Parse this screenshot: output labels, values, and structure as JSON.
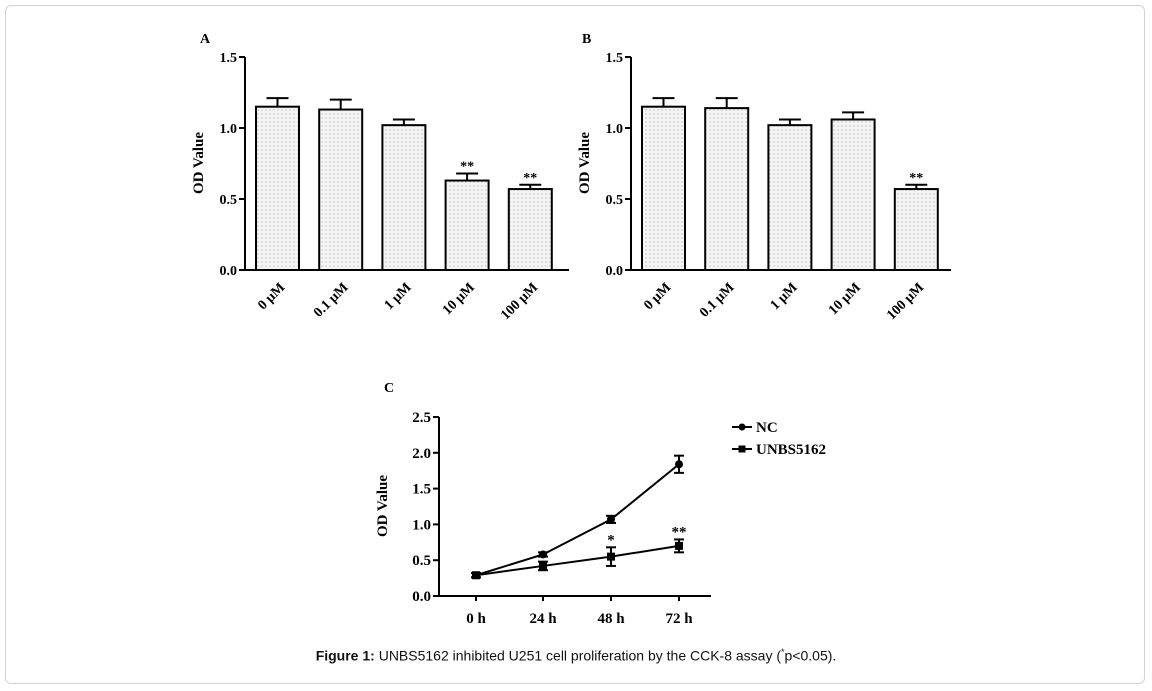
{
  "caption": {
    "label": "Figure 1:",
    "text_before": "UNBS5162 inhibited U251 cell proliferation by the CCK-8 assay (",
    "superscript": "*",
    "text_after": "p<0.05)."
  },
  "chart_data": [
    {
      "panel": "A",
      "type": "bar",
      "ylabel": "OD Value",
      "ylim": [
        0,
        1.5
      ],
      "yticks": [
        "0.0",
        "0.5",
        "1.0",
        "1.5"
      ],
      "categories": [
        "0 μM",
        "0.1 μM",
        "1 μM",
        "10 μM",
        "100 μM"
      ],
      "values": [
        1.15,
        1.13,
        1.02,
        0.63,
        0.57
      ],
      "errors": [
        0.06,
        0.07,
        0.04,
        0.05,
        0.03
      ],
      "annotations": [
        "",
        "",
        "",
        "**",
        "**"
      ],
      "fill": "dotted-light-gray"
    },
    {
      "panel": "B",
      "type": "bar",
      "ylabel": "OD Value",
      "ylim": [
        0,
        1.5
      ],
      "yticks": [
        "0.0",
        "0.5",
        "1.0",
        "1.5"
      ],
      "categories": [
        "0 μM",
        "0.1 μM",
        "1 μM",
        "10 μM",
        "100 μM"
      ],
      "values": [
        1.15,
        1.14,
        1.02,
        1.06,
        0.57
      ],
      "errors": [
        0.06,
        0.07,
        0.04,
        0.05,
        0.03
      ],
      "annotations": [
        "",
        "",
        "",
        "",
        "**"
      ],
      "fill": "dotted-light-gray"
    },
    {
      "panel": "C",
      "type": "line",
      "ylabel": "OD Value",
      "ylim": [
        0,
        2.5
      ],
      "yticks": [
        "0.0",
        "0.5",
        "1.0",
        "1.5",
        "2.0",
        "2.5"
      ],
      "categories": [
        "0 h",
        "24 h",
        "48 h",
        "72 h"
      ],
      "series": [
        {
          "name": "NC",
          "marker": "circle",
          "values": [
            0.29,
            0.58,
            1.07,
            1.84
          ],
          "errors": [
            0.03,
            0.03,
            0.05,
            0.12
          ]
        },
        {
          "name": "UNBS5162",
          "marker": "square",
          "values": [
            0.29,
            0.42,
            0.55,
            0.7
          ],
          "errors": [
            0.03,
            0.06,
            0.13,
            0.09
          ]
        }
      ],
      "annotations": [
        "",
        "",
        "*",
        "**"
      ],
      "legend": "top-right"
    }
  ]
}
